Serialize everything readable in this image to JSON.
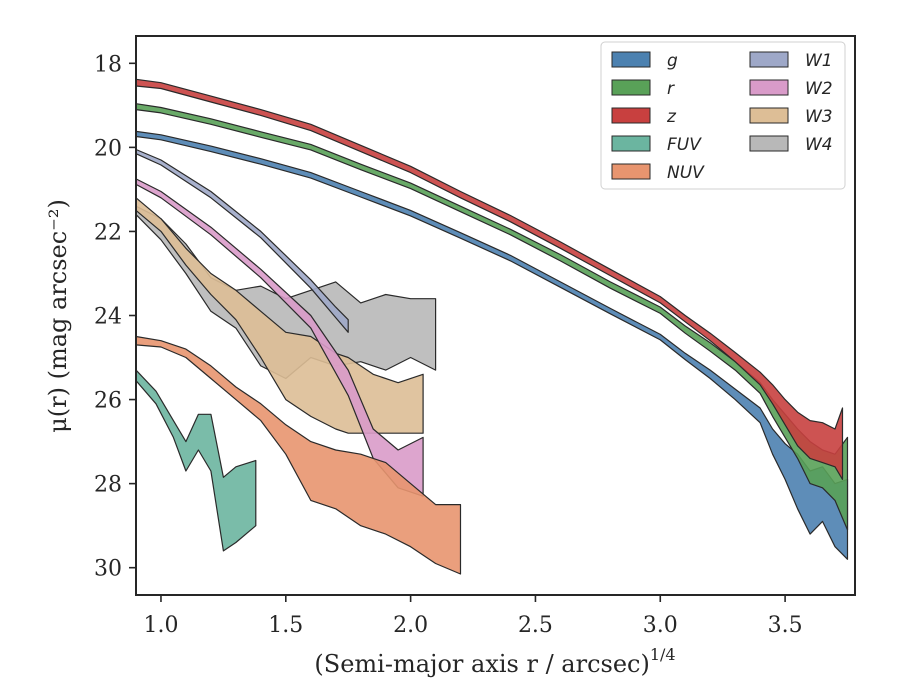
{
  "chart_data": {
    "type": "area",
    "title": "",
    "xlabel": "(Semi-major axis r / arcsec)",
    "xlabel_exponent": "1/4",
    "ylabel": "μ(r) (mag arcsec⁻²)",
    "xlim": [
      0.9,
      3.78
    ],
    "ylim": [
      30.65,
      17.35
    ],
    "y_inverted": true,
    "x_ticks": [
      1.0,
      1.5,
      2.0,
      2.5,
      3.0,
      3.5
    ],
    "x_tick_labels": [
      "1.0",
      "1.5",
      "2.0",
      "2.5",
      "3.0",
      "3.5"
    ],
    "y_ticks": [
      18,
      20,
      22,
      24,
      26,
      28,
      30
    ],
    "y_tick_labels": [
      "18",
      "20",
      "22",
      "24",
      "26",
      "28",
      "30"
    ],
    "grid": false,
    "legend_position": "top-right",
    "legend_columns": 2,
    "series": [
      {
        "name": "g",
        "color": "#4c81b0",
        "x": [
          0.9,
          1.0,
          1.2,
          1.4,
          1.6,
          1.8,
          2.0,
          2.2,
          2.4,
          2.6,
          2.8,
          3.0,
          3.1,
          3.2,
          3.3,
          3.4,
          3.45,
          3.5,
          3.55,
          3.6,
          3.65,
          3.7,
          3.75
        ],
        "y_bright": [
          19.62,
          19.7,
          19.97,
          20.27,
          20.6,
          21.05,
          21.5,
          22.03,
          22.57,
          23.2,
          23.83,
          24.45,
          24.9,
          25.3,
          25.75,
          26.2,
          26.7,
          27.05,
          27.3,
          27.7,
          27.6,
          28.0,
          27.9
        ],
        "y_faint": [
          19.74,
          19.82,
          20.1,
          20.4,
          20.73,
          21.18,
          21.63,
          22.16,
          22.7,
          23.33,
          23.96,
          24.58,
          25.05,
          25.5,
          26.0,
          26.55,
          27.3,
          27.9,
          28.6,
          29.2,
          28.9,
          29.5,
          29.8
        ]
      },
      {
        "name": "r",
        "color": "#59a158",
        "x": [
          0.9,
          1.0,
          1.2,
          1.4,
          1.6,
          1.8,
          2.0,
          2.2,
          2.4,
          2.6,
          2.8,
          3.0,
          3.1,
          3.2,
          3.3,
          3.4,
          3.45,
          3.5,
          3.55,
          3.6,
          3.65,
          3.7,
          3.75
        ],
        "y_bright": [
          18.96,
          19.05,
          19.32,
          19.63,
          19.93,
          20.4,
          20.85,
          21.4,
          21.95,
          22.55,
          23.2,
          23.8,
          24.25,
          24.65,
          25.1,
          25.6,
          26.0,
          26.35,
          26.7,
          27.0,
          27.2,
          27.3,
          26.9
        ],
        "y_faint": [
          19.1,
          19.18,
          19.45,
          19.76,
          20.06,
          20.53,
          20.98,
          21.53,
          22.08,
          22.7,
          23.35,
          23.95,
          24.42,
          24.85,
          25.3,
          25.85,
          26.4,
          26.9,
          27.4,
          28.0,
          28.1,
          28.4,
          29.1
        ]
      },
      {
        "name": "z",
        "color": "#c8403f",
        "x": [
          0.9,
          1.0,
          1.2,
          1.4,
          1.6,
          1.8,
          2.0,
          2.2,
          2.4,
          2.6,
          2.8,
          3.0,
          3.1,
          3.2,
          3.3,
          3.4,
          3.45,
          3.5,
          3.55,
          3.6,
          3.65,
          3.7,
          3.73
        ],
        "y_bright": [
          18.38,
          18.46,
          18.78,
          19.1,
          19.45,
          19.95,
          20.45,
          21.05,
          21.62,
          22.25,
          22.9,
          23.55,
          24.0,
          24.42,
          24.88,
          25.35,
          25.65,
          26.0,
          26.3,
          26.5,
          26.55,
          26.7,
          26.2
        ],
        "y_faint": [
          18.54,
          18.6,
          18.92,
          19.24,
          19.6,
          20.1,
          20.6,
          21.2,
          21.77,
          22.4,
          23.05,
          23.7,
          24.15,
          24.6,
          25.1,
          25.65,
          26.1,
          26.6,
          27.1,
          27.4,
          27.5,
          27.6,
          27.9
        ]
      },
      {
        "name": "FUV",
        "color": "#6bb5a0",
        "x": [
          0.9,
          0.98,
          1.05,
          1.1,
          1.15,
          1.2,
          1.25,
          1.3,
          1.38
        ],
        "y_bright": [
          25.3,
          25.8,
          26.5,
          27.0,
          26.35,
          26.35,
          27.85,
          27.6,
          27.45
        ],
        "y_faint": [
          25.55,
          26.1,
          26.9,
          27.7,
          27.2,
          27.7,
          29.6,
          29.4,
          29.0
        ]
      },
      {
        "name": "NUV",
        "color": "#e8956f",
        "x": [
          0.9,
          1.0,
          1.1,
          1.2,
          1.3,
          1.4,
          1.5,
          1.6,
          1.7,
          1.8,
          1.9,
          2.0,
          2.1,
          2.2
        ],
        "y_bright": [
          24.5,
          24.6,
          24.8,
          25.2,
          25.7,
          26.1,
          26.6,
          27.0,
          27.2,
          27.3,
          27.5,
          28.0,
          28.5,
          28.5
        ],
        "y_faint": [
          24.7,
          24.75,
          25.0,
          25.5,
          26.0,
          26.5,
          27.3,
          28.4,
          28.6,
          29.0,
          29.2,
          29.5,
          29.9,
          30.15
        ]
      },
      {
        "name": "W1",
        "color": "#9ea8c8",
        "x": [
          0.9,
          1.0,
          1.2,
          1.4,
          1.6,
          1.7,
          1.75
        ],
        "y_bright": [
          20.05,
          20.3,
          21.05,
          22.0,
          23.15,
          23.8,
          24.1
        ],
        "y_faint": [
          20.15,
          20.42,
          21.2,
          22.15,
          23.35,
          24.05,
          24.4
        ]
      },
      {
        "name": "W2",
        "color": "#d99bc9",
        "x": [
          0.9,
          1.0,
          1.2,
          1.4,
          1.6,
          1.75,
          1.85,
          1.95,
          2.05
        ],
        "y_bright": [
          20.75,
          21.05,
          21.9,
          22.9,
          24.0,
          25.3,
          26.7,
          27.2,
          26.9
        ],
        "y_faint": [
          20.88,
          21.2,
          22.08,
          23.1,
          24.3,
          25.9,
          27.4,
          28.1,
          28.3
        ]
      },
      {
        "name": "W3",
        "color": "#ddbe96",
        "x": [
          0.9,
          1.0,
          1.1,
          1.2,
          1.3,
          1.4,
          1.5,
          1.6,
          1.7,
          1.75,
          1.85,
          1.95,
          2.05
        ],
        "y_bright": [
          21.2,
          21.7,
          22.4,
          23.0,
          23.4,
          23.9,
          24.4,
          24.5,
          24.9,
          25.0,
          25.4,
          25.6,
          25.4
        ],
        "y_faint": [
          21.5,
          22.0,
          22.8,
          23.5,
          24.1,
          25.0,
          26.0,
          26.4,
          26.7,
          26.8,
          26.8,
          26.8,
          26.8
        ]
      },
      {
        "name": "W4",
        "color": "#b8b8b8",
        "x": [
          0.9,
          1.0,
          1.1,
          1.2,
          1.3,
          1.4,
          1.5,
          1.6,
          1.7,
          1.8,
          1.9,
          2.0,
          2.1
        ],
        "y_bright": [
          21.4,
          21.7,
          22.3,
          23.1,
          23.4,
          23.3,
          23.6,
          23.4,
          23.2,
          23.7,
          23.5,
          23.6,
          23.6
        ],
        "y_faint": [
          21.6,
          22.2,
          23.0,
          23.9,
          24.3,
          25.2,
          25.5,
          25.0,
          25.2,
          25.1,
          25.3,
          25.0,
          25.3
        ]
      }
    ]
  }
}
